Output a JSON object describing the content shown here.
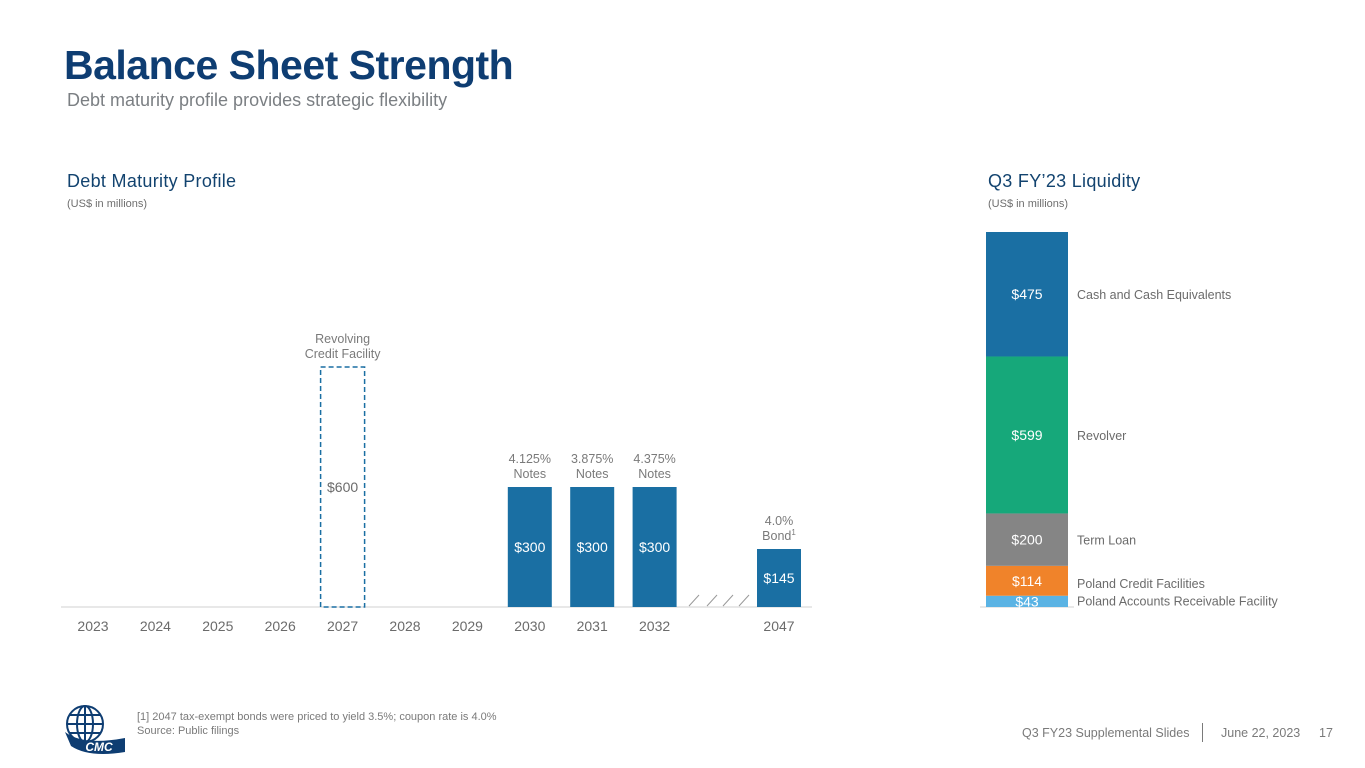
{
  "header": {
    "title": "Balance Sheet Strength",
    "subtitle": "Debt maturity profile provides strategic flexibility"
  },
  "debt_section": {
    "title": "Debt Maturity Profile",
    "units": "(US$ in millions)"
  },
  "liquidity_section": {
    "title": "Q3 FY’23 Liquidity",
    "units": "(US$ in millions)"
  },
  "colors": {
    "bar_blue": "#1a6fa3",
    "axis": "#d0d0d0",
    "tick": "#6b6b6b",
    "annotation": "#7a7a7a"
  },
  "chart_data": [
    {
      "type": "bar",
      "title": "Debt Maturity Profile",
      "ylabel": "US$ in millions",
      "categories": [
        "2023",
        "2024",
        "2025",
        "2026",
        "2027",
        "2028",
        "2029",
        "2030",
        "2031",
        "2032",
        "2047"
      ],
      "values": [
        0,
        0,
        0,
        0,
        600,
        0,
        0,
        300,
        300,
        300,
        145
      ],
      "value_labels": [
        "",
        "",
        "",
        "",
        "$600",
        "",
        "",
        "$300",
        "$300",
        "$300",
        "$145"
      ],
      "bar_styles": [
        "none",
        "none",
        "none",
        "none",
        "dashed-outline",
        "none",
        "none",
        "solid",
        "solid",
        "solid",
        "solid"
      ],
      "annotations": [
        {
          "category": "2027",
          "lines": [
            "Revolving",
            "Credit Facility"
          ]
        },
        {
          "category": "2030",
          "lines": [
            "4.125%",
            "Notes"
          ]
        },
        {
          "category": "2031",
          "lines": [
            "3.875%",
            "Notes"
          ]
        },
        {
          "category": "2032",
          "lines": [
            "4.375%",
            "Notes"
          ]
        },
        {
          "category": "2047",
          "lines": [
            "4.0%",
            "Bond"
          ],
          "superscript": "1"
        }
      ],
      "axis_break": "between 2032 and 2047",
      "ylim": [
        0,
        600
      ]
    },
    {
      "type": "bar",
      "subtype": "stacked",
      "title": "Q3 FY’23 Liquidity",
      "ylabel": "US$ in millions",
      "segments": [
        {
          "name": "Poland Accounts Receivable Facility",
          "value": 43,
          "label": "$43",
          "color": "#5ab3e4"
        },
        {
          "name": "Poland Credit Facilities",
          "value": 114,
          "label": "$114",
          "color": "#f0832a"
        },
        {
          "name": "Term Loan",
          "value": 200,
          "label": "$200",
          "color": "#858585"
        },
        {
          "name": "Revolver",
          "value": 599,
          "label": "$599",
          "color": "#16a87a"
        },
        {
          "name": "Cash and Cash Equivalents",
          "value": 475,
          "label": "$475",
          "color": "#1a6fa3"
        }
      ],
      "total": 1431
    }
  ],
  "footnote": {
    "line1": "[1] 2047 tax-exempt bonds were priced to yield 3.5%; coupon rate is 4.0%",
    "line2": "Source: Public filings"
  },
  "footer": {
    "deck": "Q3 FY23 Supplemental Slides",
    "date": "June 22, 2023",
    "page": "17"
  },
  "logo": {
    "text": "CMC",
    "icon": "globe-icon"
  }
}
